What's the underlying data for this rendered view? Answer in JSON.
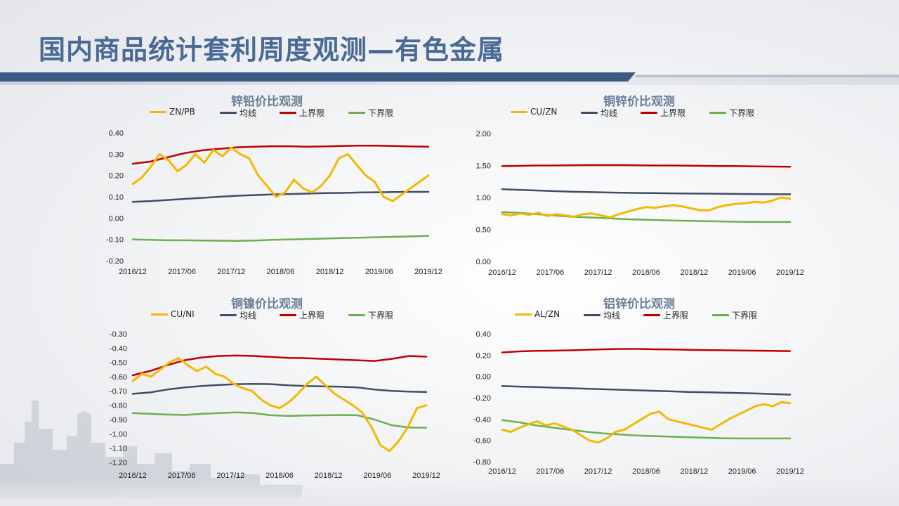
{
  "page": {
    "title": "国内商品统计套利周度观测—有色金属"
  },
  "legend_common": {
    "mean": "均线",
    "upper": "上界限",
    "lower": "下界限"
  },
  "colors": {
    "ratio": "#f5b800",
    "mean": "#3f4e66",
    "upper": "#c00000",
    "lower": "#6ab04c",
    "title": "#4a6a96"
  },
  "chart_data": [
    {
      "type": "line",
      "title": "锌铅价比观测",
      "xticks": [
        "2016/12",
        "2017/06",
        "2017/12",
        "2018/06",
        "2018/12",
        "2019/06",
        "2019/12"
      ],
      "ylim": [
        -0.2,
        0.4
      ],
      "yticks": [
        "0.40",
        "0.30",
        "0.20",
        "0.10",
        "0.00",
        "-0.10",
        "-0.20"
      ],
      "series": [
        {
          "name": "ZN/PB",
          "role": "ratio",
          "values": [
            0.16,
            0.19,
            0.24,
            0.3,
            0.27,
            0.22,
            0.25,
            0.3,
            0.26,
            0.32,
            0.29,
            0.33,
            0.3,
            0.28,
            0.2,
            0.15,
            0.1,
            0.12,
            0.18,
            0.14,
            0.12,
            0.15,
            0.2,
            0.28,
            0.3,
            0.25,
            0.2,
            0.17,
            0.1,
            0.08,
            0.11,
            0.14,
            0.17,
            0.2
          ]
        },
        {
          "name": "均线",
          "role": "mean",
          "values": [
            0.076,
            0.08,
            0.085,
            0.09,
            0.095,
            0.1,
            0.105,
            0.108,
            0.111,
            0.113,
            0.115,
            0.117,
            0.118,
            0.12,
            0.121,
            0.122,
            0.123,
            0.123
          ]
        },
        {
          "name": "上界限",
          "role": "upper",
          "values": [
            0.255,
            0.265,
            0.285,
            0.305,
            0.318,
            0.325,
            0.332,
            0.335,
            0.337,
            0.337,
            0.335,
            0.336,
            0.338,
            0.34,
            0.34,
            0.338,
            0.336,
            0.335
          ]
        },
        {
          "name": "下界限",
          "role": "lower",
          "values": [
            -0.1,
            -0.102,
            -0.104,
            -0.104,
            -0.105,
            -0.106,
            -0.107,
            -0.105,
            -0.102,
            -0.1,
            -0.098,
            -0.096,
            -0.094,
            -0.092,
            -0.09,
            -0.088,
            -0.086,
            -0.083
          ]
        }
      ]
    },
    {
      "type": "line",
      "title": "铜锌价比观测",
      "xticks": [
        "2016/12",
        "2017/06",
        "2017/12",
        "2018/06",
        "2018/12",
        "2019/06",
        "2019/12"
      ],
      "ylim": [
        0,
        2
      ],
      "yticks": [
        "2.00",
        "1.50",
        "1.00",
        "0.50",
        "0.00"
      ],
      "series": [
        {
          "name": "CU/ZN",
          "role": "ratio",
          "values": [
            0.74,
            0.72,
            0.75,
            0.73,
            0.76,
            0.71,
            0.74,
            0.72,
            0.7,
            0.74,
            0.75,
            0.72,
            0.69,
            0.74,
            0.78,
            0.82,
            0.85,
            0.84,
            0.86,
            0.88,
            0.86,
            0.83,
            0.8,
            0.8,
            0.85,
            0.88,
            0.9,
            0.91,
            0.93,
            0.92,
            0.95,
            1.0,
            0.98
          ]
        },
        {
          "name": "均线",
          "role": "mean",
          "values": [
            1.13,
            1.12,
            1.11,
            1.1,
            1.09,
            1.085,
            1.08,
            1.075,
            1.07,
            1.068,
            1.065,
            1.062,
            1.06,
            1.058,
            1.055,
            1.053,
            1.051,
            1.05
          ]
        },
        {
          "name": "上界限",
          "role": "upper",
          "values": [
            1.49,
            1.495,
            1.5,
            1.5,
            1.503,
            1.505,
            1.505,
            1.505,
            1.503,
            1.5,
            1.5,
            1.498,
            1.495,
            1.492,
            1.49,
            1.487,
            1.484,
            1.48
          ]
        },
        {
          "name": "下界限",
          "role": "lower",
          "values": [
            0.77,
            0.76,
            0.74,
            0.72,
            0.7,
            0.69,
            0.68,
            0.665,
            0.655,
            0.648,
            0.64,
            0.635,
            0.63,
            0.625,
            0.62,
            0.618,
            0.617,
            0.617
          ]
        }
      ]
    },
    {
      "type": "line",
      "title": "铜镍价比观测",
      "xticks": [
        "2016/12",
        "2017/06",
        "2017/12",
        "2018/06",
        "2018/12",
        "2019/06",
        "2019/12"
      ],
      "ylim": [
        -1.2,
        -0.3
      ],
      "yticks": [
        "-0.30",
        "-0.40",
        "-0.50",
        "-0.60",
        "-0.70",
        "-0.80",
        "-0.90",
        "-1.00",
        "-1.10",
        "-1.20"
      ],
      "series": [
        {
          "name": "CU/NI",
          "role": "ratio",
          "values": [
            -0.63,
            -0.58,
            -0.6,
            -0.55,
            -0.5,
            -0.47,
            -0.52,
            -0.56,
            -0.53,
            -0.58,
            -0.6,
            -0.65,
            -0.68,
            -0.7,
            -0.76,
            -0.8,
            -0.82,
            -0.78,
            -0.72,
            -0.65,
            -0.6,
            -0.66,
            -0.72,
            -0.76,
            -0.8,
            -0.85,
            -0.95,
            -1.08,
            -1.12,
            -1.05,
            -0.95,
            -0.82,
            -0.8
          ]
        },
        {
          "name": "均线",
          "role": "mean",
          "values": [
            -0.72,
            -0.71,
            -0.69,
            -0.675,
            -0.665,
            -0.658,
            -0.652,
            -0.65,
            -0.652,
            -0.66,
            -0.665,
            -0.668,
            -0.67,
            -0.675,
            -0.69,
            -0.7,
            -0.705,
            -0.707
          ]
        },
        {
          "name": "上界限",
          "role": "upper",
          "values": [
            -0.59,
            -0.56,
            -0.52,
            -0.485,
            -0.465,
            -0.455,
            -0.452,
            -0.455,
            -0.462,
            -0.468,
            -0.47,
            -0.475,
            -0.48,
            -0.485,
            -0.49,
            -0.475,
            -0.455,
            -0.46
          ]
        },
        {
          "name": "下界限",
          "role": "lower",
          "values": [
            -0.855,
            -0.86,
            -0.865,
            -0.868,
            -0.86,
            -0.855,
            -0.85,
            -0.855,
            -0.87,
            -0.875,
            -0.872,
            -0.87,
            -0.868,
            -0.87,
            -0.9,
            -0.94,
            -0.955,
            -0.957
          ]
        }
      ]
    },
    {
      "type": "line",
      "title": "铝锌价比观测",
      "xticks": [
        "2016/12",
        "2017/06",
        "2017/12",
        "2018/06",
        "2018/12",
        "2019/06",
        "2019/12"
      ],
      "ylim": [
        -0.8,
        0.4
      ],
      "yticks": [
        "0.40",
        "0.20",
        "0.00",
        "-0.20",
        "-0.40",
        "-0.60",
        "-0.80"
      ],
      "series": [
        {
          "name": "AL/ZN",
          "role": "ratio",
          "values": [
            -0.5,
            -0.52,
            -0.48,
            -0.45,
            -0.42,
            -0.46,
            -0.44,
            -0.47,
            -0.5,
            -0.55,
            -0.6,
            -0.62,
            -0.58,
            -0.52,
            -0.5,
            -0.45,
            -0.4,
            -0.35,
            -0.33,
            -0.4,
            -0.42,
            -0.44,
            -0.46,
            -0.48,
            -0.5,
            -0.45,
            -0.4,
            -0.36,
            -0.32,
            -0.28,
            -0.26,
            -0.28,
            -0.24,
            -0.25
          ]
        },
        {
          "name": "均线",
          "role": "mean",
          "values": [
            -0.09,
            -0.095,
            -0.1,
            -0.105,
            -0.11,
            -0.115,
            -0.12,
            -0.125,
            -0.13,
            -0.135,
            -0.14,
            -0.145,
            -0.148,
            -0.152,
            -0.156,
            -0.16,
            -0.165,
            -0.17
          ]
        },
        {
          "name": "上界限",
          "role": "upper",
          "values": [
            0.225,
            0.235,
            0.24,
            0.242,
            0.245,
            0.25,
            0.255,
            0.258,
            0.258,
            0.255,
            0.253,
            0.25,
            0.248,
            0.246,
            0.244,
            0.242,
            0.24,
            0.238
          ]
        },
        {
          "name": "下界限",
          "role": "lower",
          "values": [
            -0.41,
            -0.43,
            -0.46,
            -0.48,
            -0.5,
            -0.52,
            -0.535,
            -0.545,
            -0.555,
            -0.56,
            -0.565,
            -0.57,
            -0.575,
            -0.58,
            -0.582,
            -0.582,
            -0.582,
            -0.582
          ]
        }
      ]
    }
  ]
}
